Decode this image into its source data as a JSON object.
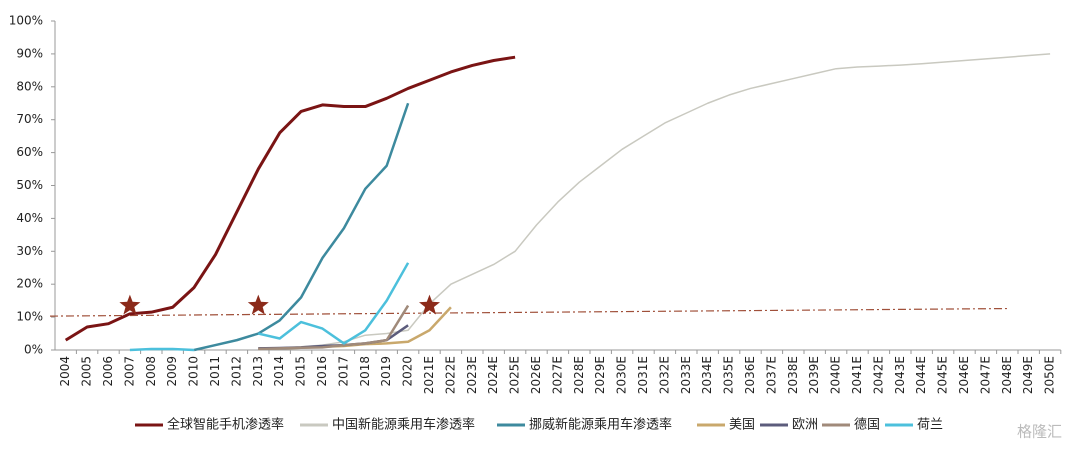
{
  "chart_data": {
    "type": "line",
    "categories": [
      "2004",
      "2005",
      "2006",
      "2007",
      "2008",
      "2009",
      "2010",
      "2011",
      "2012",
      "2013",
      "2014",
      "2015",
      "2016",
      "2017",
      "2018",
      "2019",
      "2020",
      "2021E",
      "2022E",
      "2023E",
      "2024E",
      "2025E",
      "2026E",
      "2027E",
      "2028E",
      "2029E",
      "2030E",
      "2031E",
      "2032E",
      "2033E",
      "2034E",
      "2035E",
      "2036E",
      "2037E",
      "2038E",
      "2039E",
      "2040E",
      "2041E",
      "2042E",
      "2043E",
      "2044E",
      "2045E",
      "2046E",
      "2047E",
      "2048E",
      "2049E",
      "2050E"
    ],
    "ylim": [
      0,
      100
    ],
    "yticks": [
      {
        "value": 0,
        "label": "0%"
      },
      {
        "value": 10,
        "label": "10%"
      },
      {
        "value": 20,
        "label": "20%"
      },
      {
        "value": 30,
        "label": "30%"
      },
      {
        "value": 40,
        "label": "40%"
      },
      {
        "value": 50,
        "label": "50%"
      },
      {
        "value": 60,
        "label": "60%"
      },
      {
        "value": 70,
        "label": "70%"
      },
      {
        "value": 80,
        "label": "80%"
      },
      {
        "value": 90,
        "label": "90%"
      },
      {
        "value": 100,
        "label": "100%"
      }
    ],
    "series": [
      {
        "name": "全球智能手机渗透率",
        "color": "#7a1414",
        "width": 3,
        "values": [
          3,
          7,
          8,
          11,
          11.5,
          13,
          19,
          29,
          42,
          55,
          66,
          72.5,
          74.5,
          74,
          74,
          76.5,
          79.5,
          82,
          84.5,
          86.5,
          88,
          89,
          null,
          null,
          null,
          null,
          null,
          null,
          null,
          null,
          null,
          null,
          null,
          null,
          null,
          null,
          null,
          null,
          null,
          null,
          null,
          null,
          null,
          null,
          null,
          null,
          null
        ]
      },
      {
        "name": "中国新能源乘用车渗透率",
        "color": "#c9c9c0",
        "width": 1.5,
        "values": [
          null,
          null,
          null,
          null,
          null,
          null,
          null,
          null,
          null,
          0.5,
          0.5,
          1,
          1.5,
          2.5,
          4.5,
          5,
          6,
          14,
          20,
          23,
          26,
          30,
          38,
          45,
          51,
          56,
          61,
          65,
          69,
          72,
          75,
          77.5,
          79.5,
          81,
          82.5,
          84,
          85.5,
          86,
          86.3,
          86.6,
          87,
          87.5,
          88,
          88.5,
          89,
          89.5,
          90
        ]
      },
      {
        "name": "挪威新能源乘用车渗透率",
        "color": "#3d8a9e",
        "width": 2.5,
        "values": [
          null,
          null,
          null,
          null,
          null,
          null,
          0,
          1.5,
          3,
          5,
          9,
          16,
          28,
          37,
          49,
          56,
          75,
          null,
          null,
          null,
          null,
          null,
          null,
          null,
          null,
          null,
          null,
          null,
          null,
          null,
          null,
          null,
          null,
          null,
          null,
          null,
          null,
          null,
          null,
          null,
          null,
          null,
          null,
          null,
          null,
          null,
          null
        ]
      },
      {
        "name": "美国",
        "color": "#c9a86c",
        "width": 2.5,
        "values": [
          null,
          null,
          null,
          null,
          null,
          null,
          null,
          null,
          null,
          0.5,
          0.5,
          0.7,
          1,
          1.2,
          1.8,
          2,
          2.5,
          6,
          13,
          null,
          null,
          null,
          null,
          null,
          null,
          null,
          null,
          null,
          null,
          null,
          null,
          null,
          null,
          null,
          null,
          null,
          null,
          null,
          null,
          null,
          null,
          null,
          null,
          null,
          null,
          null,
          null
        ]
      },
      {
        "name": "欧洲",
        "color": "#5c5c7c",
        "width": 2.5,
        "values": [
          null,
          null,
          null,
          null,
          null,
          null,
          null,
          null,
          null,
          0.5,
          0.6,
          0.8,
          1.2,
          1.5,
          2,
          3,
          7.5,
          null,
          null,
          null,
          null,
          null,
          null,
          null,
          null,
          null,
          null,
          null,
          null,
          null,
          null,
          null,
          null,
          null,
          null,
          null,
          null,
          null,
          null,
          null,
          null,
          null,
          null,
          null,
          null,
          null,
          null
        ]
      },
      {
        "name": "德国",
        "color": "#a08a7a",
        "width": 2.5,
        "values": [
          null,
          null,
          null,
          null,
          null,
          null,
          null,
          null,
          null,
          0.3,
          0.5,
          0.7,
          0.8,
          1.5,
          2,
          3,
          13.5,
          null,
          null,
          null,
          null,
          null,
          null,
          null,
          null,
          null,
          null,
          null,
          null,
          null,
          null,
          null,
          null,
          null,
          null,
          null,
          null,
          null,
          null,
          null,
          null,
          null,
          null,
          null,
          null,
          null,
          null
        ]
      },
      {
        "name": "荷兰",
        "color": "#4cc0dc",
        "width": 2.5,
        "values": [
          null,
          null,
          null,
          0,
          0.3,
          0.3,
          0,
          null,
          null,
          5,
          3.5,
          8.5,
          6.5,
          2,
          6,
          15,
          26.5,
          null,
          null,
          null,
          null,
          null,
          null,
          null,
          null,
          null,
          null,
          null,
          null,
          null,
          null,
          null,
          null,
          null,
          null,
          null,
          null,
          null,
          null,
          null,
          null,
          null,
          null,
          null,
          null,
          null,
          null
        ]
      }
    ],
    "reference_line": {
      "start_value": 10.3,
      "end_value": 12.6,
      "end_category": "2048E",
      "color": "#a0503a"
    },
    "stars": {
      "categories": [
        "2007",
        "2013",
        "2021E"
      ],
      "values": [
        13.5,
        13.5,
        13.5
      ],
      "color": "#8b2a1a"
    },
    "watermark": "格隆汇"
  }
}
